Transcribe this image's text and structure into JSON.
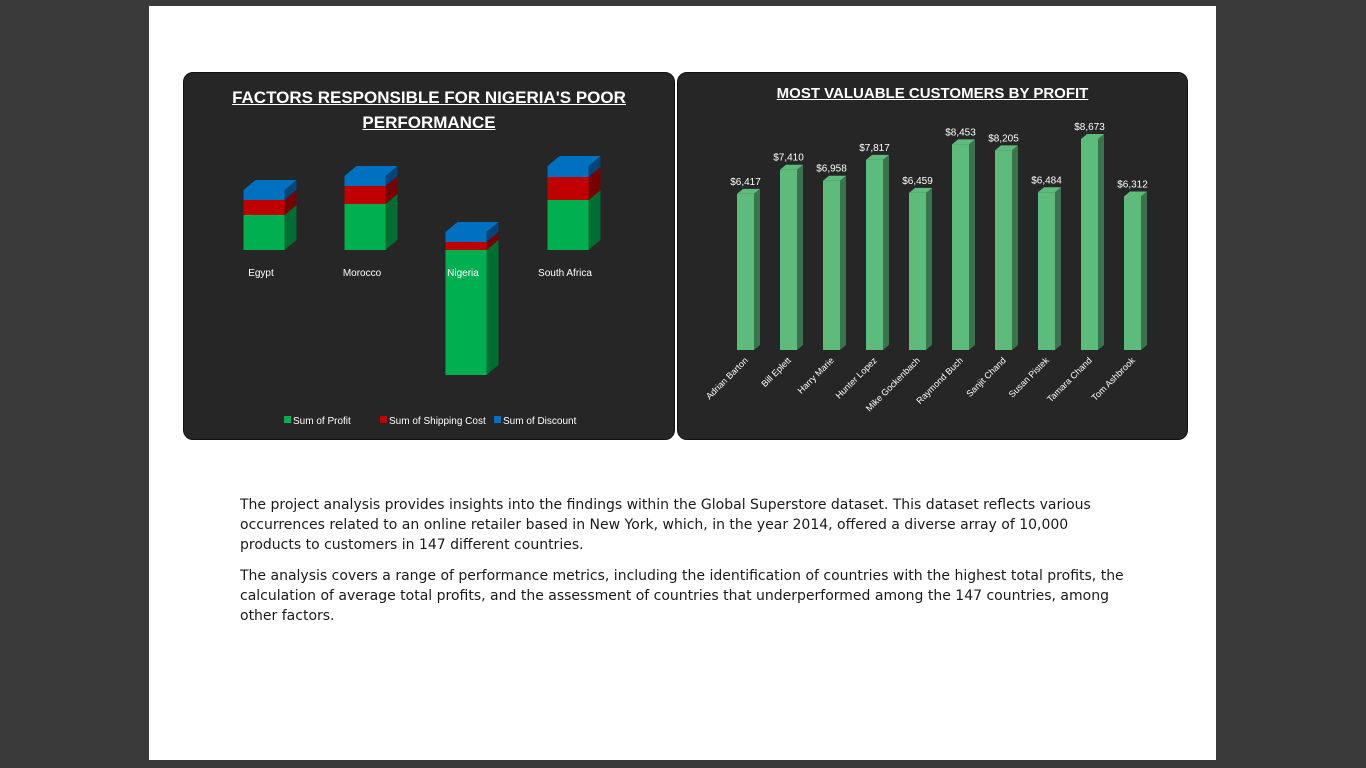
{
  "left_panel": {
    "title": "FACTORS  RESPONSIBLE FOR NIGERIA'S POOR PERFORMANCE"
  },
  "right_panel": {
    "title": "MOST VALUABLE CUSTOMERS BY PROFIT"
  },
  "paragraphs": [
    "The project analysis provides insights into the findings within the Global Superstore dataset. This dataset reflects various occurrences related to an online retailer based in New York, which, in the year 2014, offered a diverse array of 10,000 products to customers in 147 different countries.",
    "The analysis covers a range of performance metrics, including the identification of countries with the highest total profits, the calculation of average total profits, and the assessment of countries that underperformed among the 147 countries, among other factors."
  ],
  "colors": {
    "profit": "#00b050",
    "shipping": "#c00000",
    "discount": "#0070c0",
    "customer_bar": "#5dbb7c",
    "panel_bg": "#262626"
  },
  "chart_data": [
    {
      "type": "bar",
      "stacked": true,
      "title": "FACTORS  RESPONSIBLE FOR NIGERIA'S POOR PERFORMANCE",
      "categories": [
        "Egypt",
        "Morocco",
        "Nigeria",
        "South Africa"
      ],
      "series": [
        {
          "name": "Sum of Profit",
          "values": [
            35,
            46,
            -125,
            50
          ]
        },
        {
          "name": "Sum of Shipping Cost",
          "values": [
            15,
            18,
            8,
            23
          ]
        },
        {
          "name": "Sum of Discount",
          "values": [
            10,
            10,
            10,
            11
          ]
        }
      ],
      "legend": "bottom",
      "grid": false
    },
    {
      "type": "bar",
      "title": "MOST VALUABLE CUSTOMERS BY PROFIT",
      "categories": [
        "Adrian Barton",
        "Bill Eplett",
        "Harry Marie",
        "Hunter Lopez",
        "Mike Gockenbach",
        "Raymond Buch",
        "Sanjit Chand",
        "Susan Pistek",
        "Tamara Chand",
        "Tom Ashbrook"
      ],
      "values": [
        6417,
        7410,
        6958,
        7817,
        6459,
        8453,
        8205,
        6484,
        8673,
        6312
      ],
      "data_labels": [
        "$6,417",
        "$7,410",
        "$6,958",
        "$7,817",
        "$6,459",
        "$8,453",
        "$8,205",
        "$6,484",
        "$8,673",
        "$6,312"
      ],
      "ylim": [
        0,
        8673
      ],
      "grid": false
    }
  ]
}
